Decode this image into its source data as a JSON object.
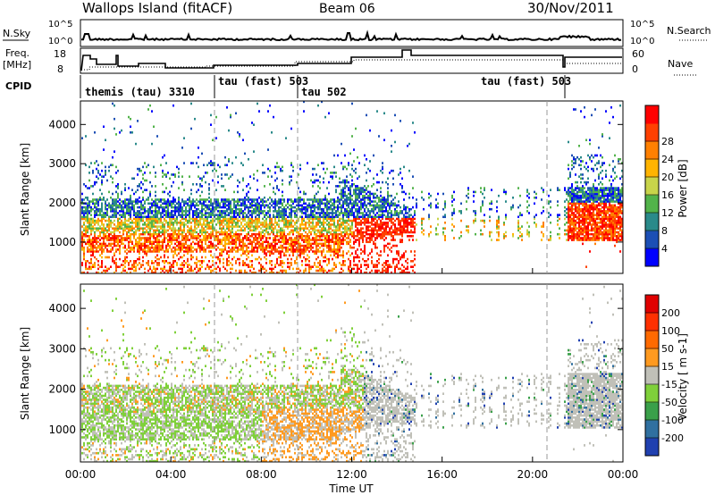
{
  "header": {
    "station": "Wallops Island (fitACF)",
    "beam": "Beam 06",
    "date": "30/Nov/2011"
  },
  "top_panels": {
    "nsky_label": "N.Sky",
    "nsearch_label": "N.Search",
    "nsky_ticks": [
      "10^5",
      "10^0"
    ],
    "nsearch_ticks": [
      "10^5",
      "10^0"
    ],
    "freq_label": "Freq.",
    "freq_unit": "[MHz]",
    "freq_ticks": [
      "18",
      "8"
    ],
    "nave_label": "Nave",
    "nave_ticks": [
      "60",
      "0"
    ],
    "cpid_label": "CPID",
    "cpid_segments": [
      {
        "label": "themis (tau) 3310"
      },
      {
        "label": "tau (fast) 503"
      },
      {
        "label": "tau 502"
      },
      {
        "label": "tau (fast) 503"
      }
    ]
  },
  "chart_data": [
    {
      "type": "heatmap",
      "name": "power",
      "ylabel": "Slant Range [km]",
      "y_ticks": [
        "1000",
        "2000",
        "3000",
        "4000"
      ],
      "ylim": [
        200,
        4600
      ],
      "colorbar": {
        "label": "Power [dB]",
        "ticks": [
          "4",
          "8",
          "12",
          "16",
          "20",
          "24",
          "28"
        ],
        "colors": [
          "#0000ff",
          "#1c4fb5",
          "#2a8a8a",
          "#52b34a",
          "#c8d44a",
          "#ffb400",
          "#ff8000",
          "#ff4000",
          "#ff0000"
        ]
      }
    },
    {
      "type": "heatmap",
      "name": "velocity",
      "ylabel": "Slant Range [km]",
      "y_ticks": [
        "1000",
        "2000",
        "3000",
        "4000"
      ],
      "ylim": [
        200,
        4600
      ],
      "colorbar": {
        "label": "Velocity [ m s-1]",
        "ticks": [
          "200",
          "100",
          "50",
          "15",
          "-15",
          "-50",
          "-100",
          "-200"
        ],
        "colors": [
          "#2040b0",
          "#3070a0",
          "#3aa04a",
          "#7fd03a",
          "#c0c0b8",
          "#ff9a20",
          "#ff6a00",
          "#ff3000",
          "#e00000"
        ]
      }
    }
  ],
  "x_axis": {
    "label": "Time UT",
    "ticks": [
      "00:00",
      "04:00",
      "08:00",
      "12:00",
      "16:00",
      "20:00",
      "00:00"
    ]
  }
}
